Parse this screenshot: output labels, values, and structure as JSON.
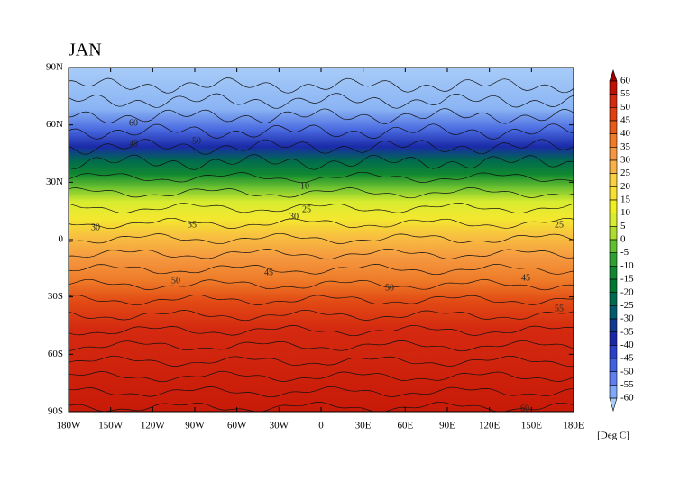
{
  "map": {
    "title": "JAN",
    "xlim": [
      -180,
      180
    ],
    "ylim": [
      -90,
      90
    ],
    "xticks": [
      {
        "value": -180,
        "label": "180W"
      },
      {
        "value": -150,
        "label": "150W"
      },
      {
        "value": -120,
        "label": "120W"
      },
      {
        "value": -90,
        "label": "90W"
      },
      {
        "value": -60,
        "label": "60W"
      },
      {
        "value": -30,
        "label": "30W"
      },
      0,
      {
        "value": 30,
        "label": "30E"
      },
      {
        "value": 60,
        "label": "60E"
      },
      {
        "value": 90,
        "label": "90E"
      },
      {
        "value": 120,
        "label": "120E"
      },
      {
        "value": 150,
        "label": "150E"
      },
      {
        "value": 180,
        "label": "180E"
      }
    ],
    "yticks": [
      {
        "value": 90,
        "label": "90N"
      },
      {
        "value": 60,
        "label": "60N"
      },
      {
        "value": 30,
        "label": "30N"
      },
      0,
      {
        "value": -30,
        "label": "30S"
      },
      {
        "value": -60,
        "label": "60S"
      },
      {
        "value": -90,
        "label": "90S"
      }
    ],
    "contour_labels": [
      60,
      45,
      50,
      10,
      25,
      30,
      25,
      30,
      35,
      45,
      50,
      50,
      45,
      55,
      60
    ],
    "colorbar": {
      "unit": "[Deg C]",
      "levels": [
        60,
        55,
        50,
        45,
        40,
        35,
        30,
        25,
        20,
        15,
        10,
        5,
        0,
        -5,
        -10,
        -15,
        -20,
        -25,
        -30,
        -35,
        -40,
        -45,
        -50,
        -55,
        -60
      ],
      "colors": [
        "#a00000",
        "#c01000",
        "#d42a10",
        "#e04010",
        "#e85a18",
        "#f07a28",
        "#f59640",
        "#f8b048",
        "#fad040",
        "#f8e030",
        "#f0f020",
        "#d8ec30",
        "#b0dc30",
        "#60c030",
        "#30a030",
        "#108830",
        "#007830",
        "#006a50",
        "#005a70",
        "#103a90",
        "#1a28a8",
        "#2a40c8",
        "#4060e0",
        "#6080f0",
        "#80a8f8",
        "#a8ccf8"
      ]
    }
  }
}
